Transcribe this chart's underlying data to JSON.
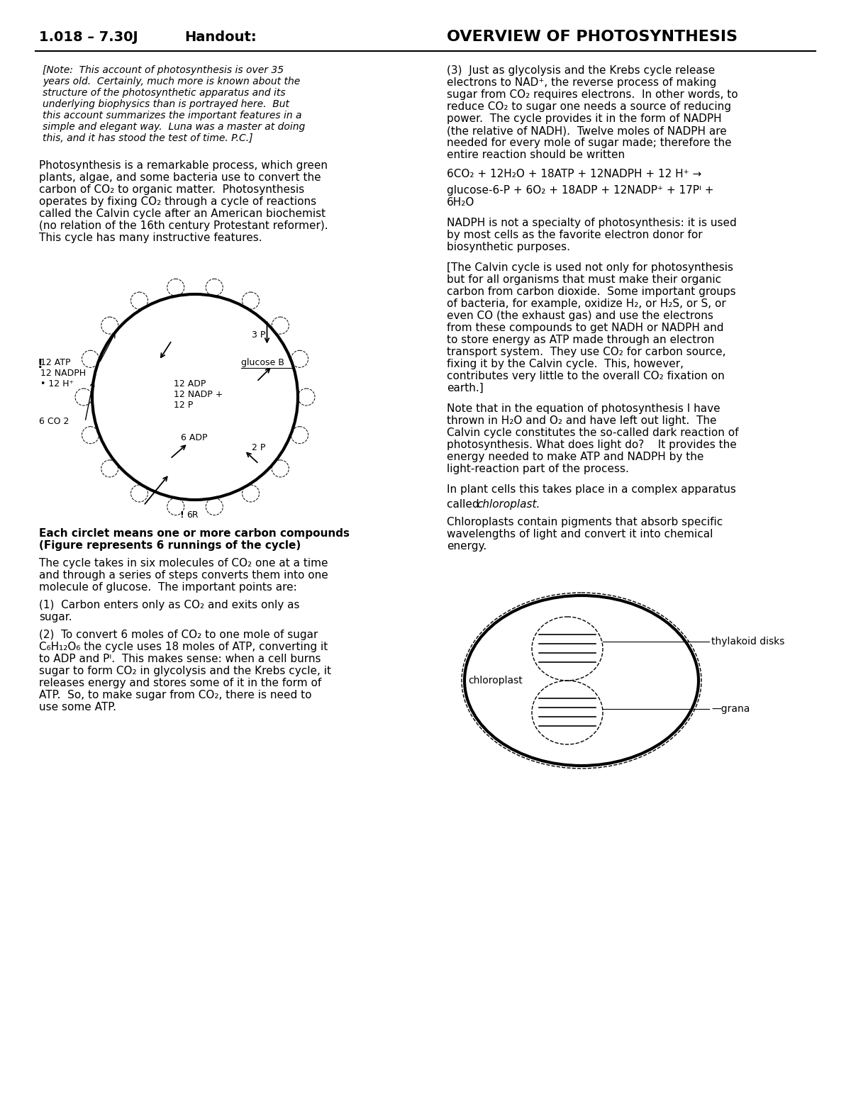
{
  "bg_color": "#ffffff",
  "header_left": "1.018 – 7.30J",
  "header_mid": "Handout:",
  "header_right": "OVERVIEW OF PHOTOSYNTHESIS",
  "note_lines": [
    "[Note:  This account of photosynthesis is over 35",
    "years old.  Certainly, much more is known about the",
    "structure of the photosynthetic apparatus and its",
    "underlying biophysics than is portrayed here.  But",
    "this account summarizes the important features in a",
    "simple and elegant way.  Luna was a master at doing",
    "this, and it has stood the test of time. P.C.]"
  ],
  "para1_lines": [
    "Photosynthesis is a remarkable process, which green",
    "plants, algae, and some bacteria use to convert the",
    "carbon of CO₂ to organic matter.  Photosynthesis",
    "operates by fixing CO₂ through a cycle of reactions",
    "called the Calvin cycle after an American biochemist",
    "(no relation of the 16th century Protestant reformer).",
    "This cycle has many instructive features."
  ],
  "caption_lines": [
    "Each circlet means one or more carbon compounds",
    "(Figure represents 6 runnings of the cycle)"
  ],
  "cycle_lines": [
    "The cycle takes in six molecules of CO₂ one at a time",
    "and through a series of steps converts them into one",
    "molecule of glucose.  The important points are:"
  ],
  "point1_lines": [
    "(1)  Carbon enters only as CO₂ and exits only as",
    "sugar."
  ],
  "point2_lines": [
    "(2)  To convert 6 moles of CO₂ to one mole of sugar",
    "C₆H₁₂O₆ the cycle uses 18 moles of ATP, converting it",
    "to ADP and Pᴵ.  This makes sense: when a cell burns",
    "sugar to form CO₂ in glycolysis and the Krebs cycle, it",
    "releases energy and stores some of it in the form of",
    "ATP.  So, to make sugar from CO₂, there is need to",
    "use some ATP."
  ],
  "r_para3_lines": [
    "(3)  Just as glycolysis and the Krebs cycle release",
    "electrons to NAD⁺, the reverse process of making",
    "sugar from CO₂ requires electrons.  In other words, to",
    "reduce CO₂ to sugar one needs a source of reducing",
    "power.  The cycle provides it in the form of NADPH",
    "(the relative of NADH).  Twelve moles of NADPH are",
    "needed for every mole of sugar made; therefore the",
    "entire reaction should be written"
  ],
  "eq1": "6CO₂ + 12H₂O + 18ATP + 12NADPH + 12 H⁺ →",
  "eq2a": "glucose-6-P + 6O₂ + 18ADP + 12NADP⁺ + 17Pᴵ +",
  "eq2b": "6H₂O",
  "nadph_lines": [
    "NADPH is not a specialty of photosynthesis: it is used",
    "by most cells as the favorite electron donor for",
    "biosynthetic purposes."
  ],
  "calvin_lines": [
    "[The Calvin cycle is used not only for photosynthesis",
    "but for all organisms that must make their organic",
    "carbon from carbon dioxide.  Some important groups",
    "of bacteria, for example, oxidize H₂, or H₂S, or S, or",
    "even CO (the exhaust gas) and use the electrons",
    "from these compounds to get NADH or NADPH and",
    "to store energy as ATP made through an electron",
    "transport system.  They use CO₂ for carbon source,",
    "fixing it by the Calvin cycle.  This, however,",
    "contributes very little to the overall CO₂ fixation on",
    "earth.]"
  ],
  "light_lines": [
    "Note that in the equation of photosynthesis I have",
    "thrown in H₂O and O₂ and have left out light.  The",
    "Calvin cycle constitutes the so-called dark reaction of",
    "photosynthesis. What does light do?    It provides the",
    "energy needed to make ATP and NADPH by the",
    "light-reaction part of the process."
  ],
  "chloro_line1": "In plant cells this takes place in a complex apparatus",
  "chloro_line2": "called chloroplast.",
  "chloro_lines3": [
    "Chloroplasts contain pigments that absorb specific",
    "wavelengths of light and convert it into chemical",
    "energy."
  ]
}
